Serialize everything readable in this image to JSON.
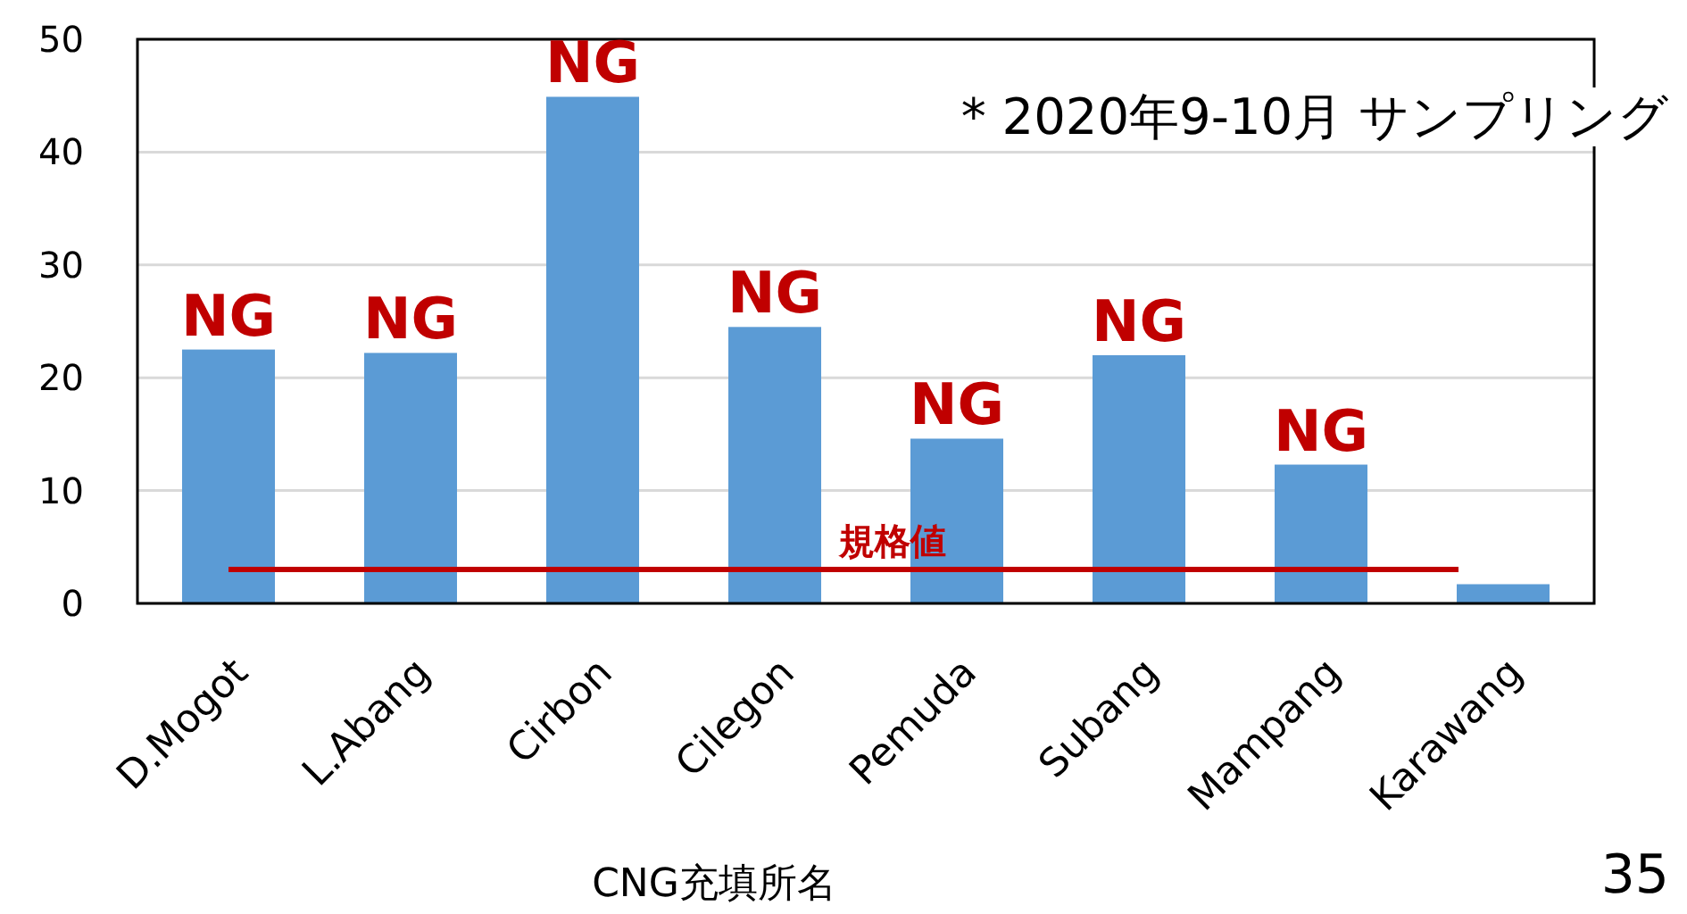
{
  "chart_data": {
    "type": "bar",
    "categories": [
      "D.Mogot",
      "L.Abang",
      "Cirbon",
      "Cilegon",
      "Pemuda",
      "Subang",
      "Mampang",
      "Karawang"
    ],
    "values": [
      22.5,
      22.2,
      44.9,
      24.5,
      14.6,
      22.0,
      12.3,
      1.7
    ],
    "color": "#5b9bd5",
    "ylim": [
      0,
      50
    ],
    "yticks": [
      0,
      10,
      20,
      30,
      40,
      50
    ],
    "grid": "y",
    "xlabel": "CNG充填所名",
    "ref_lines": [
      {
        "axis": "y",
        "value": 3,
        "label": "規格値",
        "color": "#c00000"
      }
    ],
    "annotations": [
      {
        "text": "NG",
        "x": "D.Mogot",
        "y": 22.5
      },
      {
        "text": "NG",
        "x": "L.Abang",
        "y": 22.2
      },
      {
        "text": "NG",
        "x": "Cirbon",
        "y": 44.9
      },
      {
        "text": "NG",
        "x": "Cilegon",
        "y": 24.5
      },
      {
        "text": "NG",
        "x": "Pemuda",
        "y": 14.6
      },
      {
        "text": "NG",
        "x": "Subang",
        "y": 22.0
      },
      {
        "text": "NG",
        "x": "Mampang",
        "y": 12.3
      },
      "* 2020年9-10月 サンプリング",
      "35"
    ]
  }
}
